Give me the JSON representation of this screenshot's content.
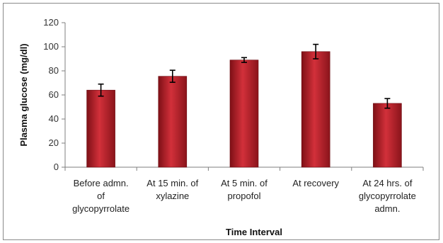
{
  "chart_data": {
    "type": "bar",
    "title": "",
    "xlabel": "Time Interval",
    "ylabel": "Plasma glucose (mg/dl)",
    "ylim": [
      0,
      120
    ],
    "yticks": [
      0,
      20,
      40,
      60,
      80,
      100,
      120
    ],
    "grid": false,
    "legend": "none",
    "categories": [
      [
        "Before admn.",
        "of",
        "glycopyrrolate"
      ],
      [
        "At 15 min. of",
        "xylazine"
      ],
      [
        "At 5 min. of",
        "propofol"
      ],
      [
        "At recovery"
      ],
      [
        "At 24 hrs. of",
        "glycopyrrolate",
        "admn."
      ]
    ],
    "values": [
      64,
      75.5,
      89,
      96,
      53
    ],
    "errors": [
      5,
      5,
      2,
      6,
      4
    ],
    "bar_color": "#b3202a"
  }
}
